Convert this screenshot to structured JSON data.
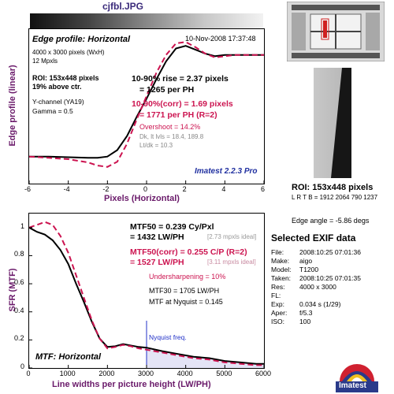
{
  "window": {
    "title": "cjfbl.JPG"
  },
  "top_panel": {
    "heading": "Edge profile: Horizontal",
    "date": "10-Nov-2008 17:37:48",
    "info": [
      "4000 x 3000 pixels (WxH)",
      "12 Mpxls"
    ],
    "roi_lines": [
      "ROI: 153x448 pixels",
      "19% above ctr."
    ],
    "channel_lines": [
      "Y-channel  (YA19)",
      "Gamma = 0.5"
    ],
    "rise_lines": [
      "10-90% rise = 2.37 pixels",
      "= 1265 per PH"
    ],
    "corr_lines": [
      "10-90%(corr) = 1.69 pixels",
      "= 1771 per PH   (R=2)"
    ],
    "overshoot": "Overshoot = 14.2%",
    "dk_lines": [
      "Dk, lt lvls = 18.4, 189.8",
      "Lt/dk = 10.3"
    ],
    "brand": "Imatest 2.2.3 Pro",
    "xlabel": "Pixels (Horizontal)",
    "ylabel": "Edge profile (linear)"
  },
  "bottom_panel": {
    "mtf50_lines": [
      "MTF50 = 0.239 Cy/Pxl",
      "= 1432 LW/PH"
    ],
    "mtf50_ideal": "[2.73 mpxls ideal]",
    "corr_lines": [
      "MTF50(corr) = 0.255 C/P   (R=2)",
      "= 1527 LW/PH"
    ],
    "corr_ideal": "[3.11 mpxls ideal]",
    "undersharpening": "Undersharpening = 10%",
    "mtf30": "MTF30 = 1705 LW/PH",
    "nyquist_line": "MTF at Nyquist = 0.145",
    "nyquist_label": "Nyquist freq.",
    "heading": "MTF: Horizontal",
    "xlabel": "Line widths per picture height (LW/PH)",
    "ylabel": "SFR (MTF)"
  },
  "sidebar": {
    "roi_label": "ROI: 153x448 pixels",
    "lrtb": "L R  T B = 1912 2064  790 1237",
    "edge_angle": "Edge angle = -5.86 degs",
    "exif_title": "Selected EXIF data",
    "exif": [
      {
        "key": "File:",
        "value": "2008:10:25 07:01:36"
      },
      {
        "key": "Make:",
        "value": "aigo"
      },
      {
        "key": "Model:",
        "value": "T1200"
      },
      {
        "key": "Taken:",
        "value": "2008:10:25 07:01:35"
      },
      {
        "key": "Res:",
        "value": "4000 x 3000"
      },
      {
        "key": "FL:",
        "value": ""
      },
      {
        "key": "Exp:",
        "value": "0.034 s  (1/29)"
      },
      {
        "key": "Aper:",
        "value": "f/5.3"
      },
      {
        "key": "ISO:",
        "value": "100"
      }
    ],
    "logo_text": "Imatest"
  },
  "colors": {
    "measured": "#000000",
    "corrected": "#cc1450",
    "nyquist": "#2030c8",
    "label": "#6a1a6a"
  },
  "chart_data": [
    {
      "type": "line",
      "xlim": [
        -6,
        6
      ],
      "ylim": [
        0,
        1.2
      ],
      "xticks": [
        -6,
        -4,
        -2,
        0,
        2,
        4,
        6
      ],
      "grid": false,
      "series": [
        {
          "x": [
            -6,
            -5,
            -4,
            -3,
            -2.5,
            -2,
            -1.5,
            -1,
            -0.5,
            0,
            0.5,
            1,
            1.5,
            2,
            2.5,
            3,
            3.5,
            4,
            4.5,
            5,
            5.5,
            6
          ],
          "values": [
            0.21,
            0.21,
            0.205,
            0.2,
            0.2,
            0.21,
            0.26,
            0.37,
            0.52,
            0.66,
            0.81,
            0.95,
            1.05,
            1.07,
            1.04,
            1.01,
            0.99,
            1.0,
            1.0,
            1.0,
            1.0,
            1.0
          ]
        },
        {
          "x": [
            -6,
            -5,
            -4,
            -3,
            -2.5,
            -2,
            -1.5,
            -1,
            -0.5,
            0,
            0.5,
            1,
            1.5,
            2,
            2.5,
            3,
            3.5,
            4,
            4.5,
            5,
            5.5,
            6
          ],
          "values": [
            0.21,
            0.2,
            0.19,
            0.165,
            0.14,
            0.13,
            0.17,
            0.31,
            0.5,
            0.68,
            0.86,
            1.0,
            1.09,
            1.1,
            1.06,
            1.01,
            0.98,
            0.99,
            1.0,
            1.0,
            1.0,
            1.0
          ]
        }
      ]
    },
    {
      "type": "line",
      "xlim": [
        0,
        6000
      ],
      "ylim": [
        0,
        1.1
      ],
      "xticks": [
        0,
        1000,
        2000,
        3000,
        4000,
        5000,
        6000
      ],
      "yticks": [
        0,
        0.2,
        0.4,
        0.6,
        0.8,
        1
      ],
      "grid": false,
      "nyquist_x": 3000,
      "series": [
        {
          "x": [
            0,
            200,
            400,
            600,
            800,
            1000,
            1200,
            1400,
            1600,
            1800,
            2000,
            2200,
            2400,
            2600,
            2800,
            3000,
            3400,
            3800,
            4200,
            4600,
            5000,
            5400,
            5800,
            6000
          ],
          "values": [
            1.0,
            0.97,
            0.95,
            0.91,
            0.84,
            0.74,
            0.6,
            0.47,
            0.33,
            0.21,
            0.15,
            0.155,
            0.17,
            0.16,
            0.15,
            0.145,
            0.12,
            0.1,
            0.08,
            0.07,
            0.05,
            0.04,
            0.03,
            0.03
          ]
        },
        {
          "x": [
            0,
            200,
            400,
            600,
            800,
            1000,
            1200,
            1400,
            1600,
            1800,
            2000,
            2200,
            2400,
            2600,
            2800,
            3000,
            3400,
            3800,
            4200,
            4600,
            5000,
            5400,
            5800,
            6000
          ],
          "values": [
            1.0,
            1.02,
            1.04,
            1.02,
            0.94,
            0.82,
            0.66,
            0.5,
            0.34,
            0.21,
            0.14,
            0.15,
            0.165,
            0.155,
            0.14,
            0.13,
            0.11,
            0.09,
            0.07,
            0.06,
            0.04,
            0.03,
            0.02,
            0.02
          ]
        }
      ]
    }
  ]
}
